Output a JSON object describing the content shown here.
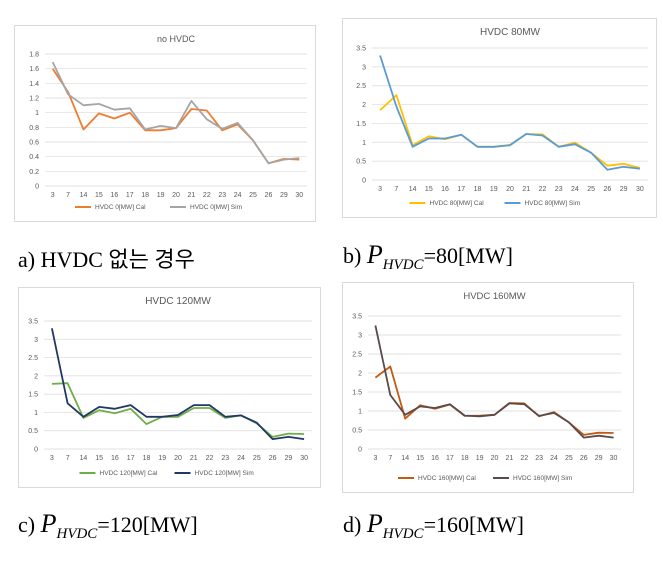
{
  "captions": [
    {
      "prefix": "a)",
      "text": "HVDC 없는 경우"
    },
    {
      "prefix": "b)",
      "var": "P",
      "sub": "HVDC",
      "value": "=80[MW]"
    },
    {
      "prefix": "c)",
      "var": "P",
      "sub": "HVDC",
      "value": "=120[MW]"
    },
    {
      "prefix": "d)",
      "var": "P",
      "sub": "HVDC",
      "value": "=160[MW]"
    }
  ],
  "chart_data": [
    {
      "type": "line",
      "title": "no HVDC",
      "categories": [
        "3",
        "7",
        "14",
        "15",
        "16",
        "17",
        "18",
        "19",
        "20",
        "21",
        "22",
        "23",
        "24",
        "25",
        "26",
        "29",
        "30"
      ],
      "ylim": [
        0,
        1.8
      ],
      "yticks": [
        "0",
        "0.2",
        "0.4",
        "0.6",
        "0.8",
        "1",
        "1.2",
        "1.4",
        "1.6",
        "1.8"
      ],
      "grid": true,
      "legend": "bottom",
      "series": [
        {
          "name": "HVDC 0[MW] Cal",
          "color": "#ED7D31",
          "values": [
            1.6,
            1.28,
            0.77,
            0.99,
            0.92,
            1.0,
            0.76,
            0.76,
            0.79,
            1.05,
            1.03,
            0.76,
            0.84,
            0.62,
            0.31,
            0.37,
            0.36
          ]
        },
        {
          "name": "HVDC 0[MW] Sim",
          "color": "#A5A5A5",
          "values": [
            1.69,
            1.25,
            1.1,
            1.12,
            1.04,
            1.06,
            0.77,
            0.82,
            0.79,
            1.16,
            0.91,
            0.78,
            0.86,
            0.62,
            0.31,
            0.36,
            0.38
          ]
        }
      ]
    },
    {
      "type": "line",
      "title": "HVDC 80MW",
      "categories": [
        "3",
        "7",
        "14",
        "15",
        "16",
        "17",
        "18",
        "19",
        "20",
        "21",
        "22",
        "23",
        "24",
        "25",
        "26",
        "29",
        "30"
      ],
      "ylim": [
        0,
        3.5
      ],
      "yticks": [
        "0",
        "0.5",
        "1",
        "1.5",
        "2",
        "2.5",
        "3",
        "3.5"
      ],
      "grid": true,
      "legend": "bottom",
      "series": [
        {
          "name": "HVDC 80[MW] Cal",
          "color": "#FFC000",
          "values": [
            1.85,
            2.25,
            0.92,
            1.16,
            1.08,
            1.2,
            0.88,
            0.88,
            0.93,
            1.22,
            1.21,
            0.88,
            0.99,
            0.72,
            0.38,
            0.43,
            0.32
          ]
        },
        {
          "name": "HVDC 80[MW] Sim",
          "color": "#5B9BD5",
          "values": [
            3.3,
            1.95,
            0.88,
            1.1,
            1.1,
            1.2,
            0.88,
            0.88,
            0.92,
            1.22,
            1.18,
            0.88,
            0.95,
            0.72,
            0.27,
            0.35,
            0.3
          ]
        }
      ]
    },
    {
      "type": "line",
      "title": "HVDC 120MW",
      "categories": [
        "3",
        "7",
        "14",
        "15",
        "16",
        "17",
        "18",
        "19",
        "20",
        "21",
        "22",
        "23",
        "24",
        "25",
        "26",
        "29",
        "30"
      ],
      "ylim": [
        0,
        3.5
      ],
      "yticks": [
        "0",
        "0.5",
        "1",
        "1.5",
        "2",
        "2.5",
        "3",
        "3.5"
      ],
      "grid": true,
      "legend": "bottom",
      "series": [
        {
          "name": "HVDC 120[MW] Cal",
          "color": "#70AD47",
          "values": [
            1.78,
            1.8,
            0.85,
            1.06,
            0.98,
            1.1,
            0.68,
            0.88,
            0.88,
            1.12,
            1.12,
            0.85,
            0.92,
            0.7,
            0.33,
            0.42,
            0.41
          ]
        },
        {
          "name": "HVDC 120[MW] Sim",
          "color": "#203864",
          "values": [
            3.3,
            1.25,
            0.88,
            1.15,
            1.1,
            1.2,
            0.88,
            0.88,
            0.93,
            1.2,
            1.2,
            0.88,
            0.92,
            0.72,
            0.27,
            0.33,
            0.27
          ]
        }
      ]
    },
    {
      "type": "line",
      "title": "HVDC 160MW",
      "categories": [
        "3",
        "7",
        "14",
        "15",
        "16",
        "17",
        "18",
        "19",
        "20",
        "21",
        "22",
        "23",
        "24",
        "25",
        "26",
        "29",
        "30"
      ],
      "ylim": [
        0,
        3.5
      ],
      "yticks": [
        "0",
        "0.5",
        "1",
        "1.5",
        "2",
        "2.5",
        "3",
        "3.5"
      ],
      "grid": true,
      "legend": "bottom",
      "series": [
        {
          "name": "HVDC 160[MW] Cal",
          "color": "#C55A11",
          "values": [
            1.88,
            2.17,
            0.8,
            1.15,
            1.06,
            1.17,
            0.87,
            0.88,
            0.9,
            1.21,
            1.2,
            0.86,
            0.97,
            0.7,
            0.37,
            0.43,
            0.42
          ]
        },
        {
          "name": "HVDC 160[MW] Sim",
          "color": "#5A4A4A",
          "values": [
            3.25,
            1.42,
            0.9,
            1.12,
            1.08,
            1.18,
            0.88,
            0.86,
            0.9,
            1.2,
            1.18,
            0.87,
            0.95,
            0.7,
            0.3,
            0.35,
            0.3
          ]
        }
      ]
    }
  ]
}
